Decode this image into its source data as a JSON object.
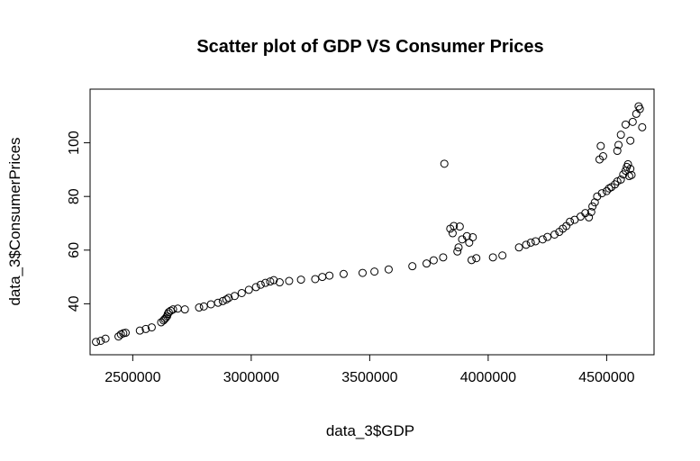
{
  "chart_data": {
    "type": "scatter",
    "title": "Scatter plot of GDP VS Consumer Prices",
    "xlabel": "data_3$GDP",
    "ylabel": "data_3$ConsumerPrices",
    "xlim": [
      2320000,
      4700000
    ],
    "ylim": [
      21,
      120
    ],
    "x_ticks": [
      2500000,
      3000000,
      3500000,
      4000000,
      4500000
    ],
    "x_tick_labels": [
      "2500000",
      "3000000",
      "3500000",
      "4000000",
      "4500000"
    ],
    "y_ticks": [
      40,
      60,
      80,
      100
    ],
    "y_tick_labels": [
      "40",
      "60",
      "80",
      "100"
    ],
    "grid": false,
    "point_style": "open-circle",
    "points": [
      [
        2345000,
        25.8
      ],
      [
        2365000,
        26.2
      ],
      [
        2385000,
        27.0
      ],
      [
        2440000,
        27.8
      ],
      [
        2450000,
        28.6
      ],
      [
        2460000,
        29.0
      ],
      [
        2470000,
        29.2
      ],
      [
        2530000,
        30.0
      ],
      [
        2555000,
        30.6
      ],
      [
        2580000,
        31.2
      ],
      [
        2620000,
        33.1
      ],
      [
        2630000,
        33.8
      ],
      [
        2635000,
        34.3
      ],
      [
        2640000,
        34.8
      ],
      [
        2645000,
        35.4
      ],
      [
        2648000,
        36.2
      ],
      [
        2652000,
        36.9
      ],
      [
        2660000,
        37.4
      ],
      [
        2670000,
        37.9
      ],
      [
        2690000,
        38.2
      ],
      [
        2720000,
        37.9
      ],
      [
        2780000,
        38.6
      ],
      [
        2800000,
        39.0
      ],
      [
        2830000,
        39.8
      ],
      [
        2860000,
        40.4
      ],
      [
        2880000,
        41.0
      ],
      [
        2895000,
        41.6
      ],
      [
        2905000,
        42.2
      ],
      [
        2930000,
        42.9
      ],
      [
        2960000,
        44.0
      ],
      [
        2990000,
        45.2
      ],
      [
        3020000,
        46.2
      ],
      [
        3040000,
        47.1
      ],
      [
        3060000,
        47.8
      ],
      [
        3080000,
        48.3
      ],
      [
        3095000,
        48.8
      ],
      [
        3120000,
        48.0
      ],
      [
        3160000,
        48.5
      ],
      [
        3210000,
        49.0
      ],
      [
        3270000,
        49.2
      ],
      [
        3300000,
        50.0
      ],
      [
        3330000,
        50.5
      ],
      [
        3390000,
        51.1
      ],
      [
        3470000,
        51.5
      ],
      [
        3520000,
        52.0
      ],
      [
        3580000,
        52.8
      ],
      [
        3680000,
        54.0
      ],
      [
        3740000,
        55.0
      ],
      [
        3770000,
        56.2
      ],
      [
        3810000,
        57.3
      ],
      [
        3815000,
        92.2
      ],
      [
        3840000,
        68.0
      ],
      [
        3850000,
        66.3
      ],
      [
        3855000,
        69.0
      ],
      [
        3870000,
        59.5
      ],
      [
        3875000,
        61.0
      ],
      [
        3880000,
        68.8
      ],
      [
        3890000,
        64.0
      ],
      [
        3910000,
        65.2
      ],
      [
        3920000,
        62.8
      ],
      [
        3930000,
        56.3
      ],
      [
        3935000,
        64.8
      ],
      [
        3950000,
        57.0
      ],
      [
        4020000,
        57.3
      ],
      [
        4060000,
        58.0
      ],
      [
        4130000,
        61.0
      ],
      [
        4160000,
        62.0
      ],
      [
        4180000,
        62.8
      ],
      [
        4200000,
        63.3
      ],
      [
        4230000,
        64.0
      ],
      [
        4250000,
        64.9
      ],
      [
        4280000,
        65.8
      ],
      [
        4300000,
        66.8
      ],
      [
        4315000,
        68.0
      ],
      [
        4330000,
        69.0
      ],
      [
        4345000,
        70.6
      ],
      [
        4365000,
        71.3
      ],
      [
        4390000,
        72.5
      ],
      [
        4410000,
        73.8
      ],
      [
        4425000,
        72.2
      ],
      [
        4435000,
        74.2
      ],
      [
        4440000,
        76.3
      ],
      [
        4450000,
        77.8
      ],
      [
        4460000,
        80.0
      ],
      [
        4480000,
        81.2
      ],
      [
        4500000,
        82.0
      ],
      [
        4510000,
        83.0
      ],
      [
        4520000,
        83.5
      ],
      [
        4535000,
        84.5
      ],
      [
        4545000,
        85.6
      ],
      [
        4560000,
        86.3
      ],
      [
        4570000,
        88.2
      ],
      [
        4580000,
        89.6
      ],
      [
        4585000,
        91.0
      ],
      [
        4590000,
        92.0
      ],
      [
        4595000,
        87.6
      ],
      [
        4600000,
        90.3
      ],
      [
        4605000,
        88.0
      ],
      [
        4470000,
        93.8
      ],
      [
        4475000,
        98.8
      ],
      [
        4485000,
        95.0
      ],
      [
        4545000,
        97.0
      ],
      [
        4550000,
        99.2
      ],
      [
        4560000,
        103.0
      ],
      [
        4580000,
        106.8
      ],
      [
        4600000,
        100.8
      ],
      [
        4610000,
        107.8
      ],
      [
        4625000,
        110.8
      ],
      [
        4635000,
        113.6
      ],
      [
        4640000,
        112.6
      ],
      [
        4650000,
        105.8
      ]
    ]
  }
}
